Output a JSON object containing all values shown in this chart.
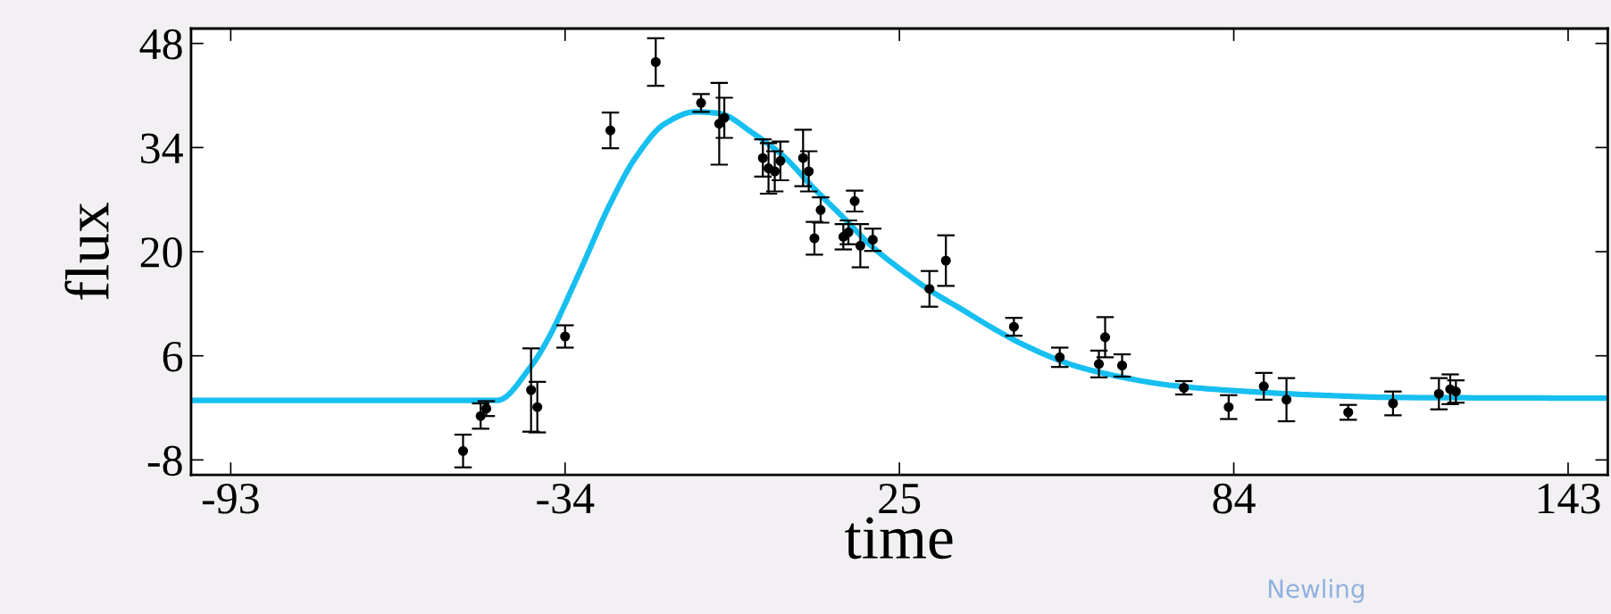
{
  "chart_data": {
    "type": "scatter",
    "xlabel": "time",
    "ylabel": "flux",
    "xlim": [
      -100,
      150
    ],
    "xticks": [
      -93,
      -34,
      25,
      84,
      143
    ],
    "ylim": [
      -10,
      50
    ],
    "yticks": [
      -8,
      6,
      20,
      34,
      48
    ],
    "grid": false,
    "annotations": [
      "Newling"
    ],
    "series": [
      {
        "color": "#000000",
        "marker": "circle",
        "x": [
          -52,
          -48.9,
          -47.9,
          -40,
          -38.9,
          -34,
          -26,
          -18,
          -10,
          -6.8,
          -5.9,
          0.9,
          1.9,
          3.0,
          4.0,
          8.0,
          9.0,
          11.1,
          10,
          17.1,
          15.1,
          16.0,
          18.1,
          20.3,
          30.3,
          33.2,
          45.2,
          53.3,
          60.2,
          61.3,
          64.3,
          75.2,
          83.1,
          89.3,
          93.3,
          104.2,
          112.1,
          120.2,
          122.2,
          123.2
        ],
        "values": [
          -6.8,
          -2.1,
          -1.1,
          1.4,
          -0.9,
          8.6,
          36.3,
          45.5,
          40.0,
          37.2,
          38.0,
          32.6,
          31.2,
          30.8,
          32.2,
          32.6,
          30.8,
          25.6,
          21.8,
          26.8,
          22.0,
          22.6,
          20.8,
          21.6,
          15.0,
          18.8,
          9.9,
          5.8,
          4.9,
          8.5,
          4.7,
          1.7,
          -0.9,
          1.9,
          0.1,
          -1.6,
          -0.4,
          0.9,
          1.5,
          1.2
        ],
        "errors": [
          2.2,
          1.7,
          1,
          5.6,
          3.4,
          1.5,
          2.4,
          3.2,
          1.2,
          5.5,
          2.7,
          2.5,
          3.4,
          2.7,
          2.6,
          3.8,
          2.7,
          1.7,
          2.2,
          1.4,
          1.7,
          1.6,
          2.9,
          1.5,
          2.4,
          3.4,
          1.2,
          1.3,
          1.8,
          2.7,
          1.5,
          0.9,
          1.6,
          1.8,
          2.9,
          1.0,
          1.6,
          2.1,
          2.0,
          1.5
        ]
      },
      {
        "type": "line",
        "color": "#17bff0",
        "line_style": "solid",
        "marker": "none",
        "x": [
          -100,
          -46,
          -40,
          -37.2,
          -31.6,
          -26,
          -21.6,
          -16.4,
          -11.1,
          -6.9,
          -0.6,
          4.6,
          9.8,
          15.1,
          20.3,
          25.6,
          30.8,
          36.1,
          41.3,
          46.6,
          55.0,
          60.2,
          73.3,
          86.4,
          99.5,
          112.7,
          150
        ],
        "values": [
          0,
          0,
          4.6,
          8.0,
          17.0,
          26.5,
          32.6,
          37.2,
          38.8,
          38.6,
          35.8,
          32.8,
          28.6,
          24.6,
          20.6,
          17.4,
          14.6,
          12.2,
          9.8,
          7.6,
          4.9,
          3.8,
          2.0,
          1.2,
          0.7,
          0.4,
          0.3
        ]
      }
    ]
  }
}
